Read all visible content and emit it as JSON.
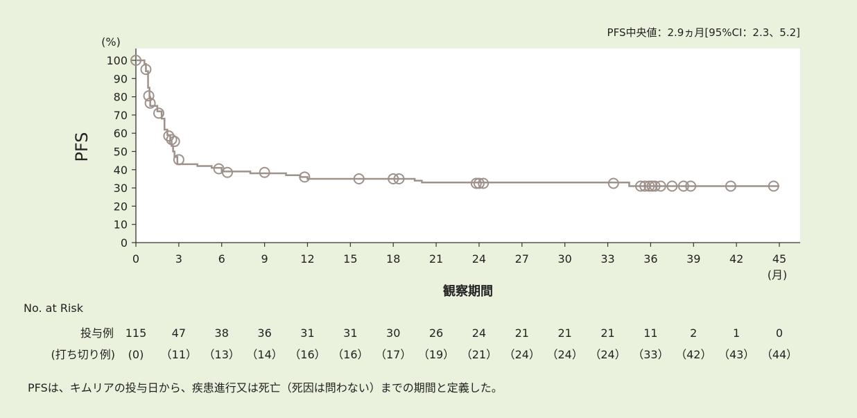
{
  "chart_data": {
    "type": "line",
    "annotation": "PFS中央値：2.9ヵ月[95%CI：2.3、5.2]",
    "ylabel": "PFS",
    "yunit": "(%)",
    "xlabel": "観察期間",
    "xunit": "(月)",
    "xlim": [
      0,
      45
    ],
    "ylim": [
      0,
      100
    ],
    "xticks": [
      0,
      3,
      6,
      9,
      12,
      15,
      18,
      21,
      24,
      27,
      30,
      33,
      36,
      39,
      42,
      45
    ],
    "yticks": [
      0,
      10,
      20,
      30,
      40,
      50,
      60,
      70,
      80,
      90,
      100
    ],
    "grid": false,
    "series": [
      {
        "color": "#9e918a",
        "step": [
          [
            0,
            100
          ],
          [
            0.6,
            98
          ],
          [
            0.7,
            94
          ],
          [
            0.85,
            85
          ],
          [
            0.95,
            80
          ],
          [
            1.0,
            75
          ],
          [
            1.5,
            72
          ],
          [
            1.8,
            68
          ],
          [
            2.0,
            62
          ],
          [
            2.2,
            59
          ],
          [
            2.4,
            56
          ],
          [
            2.5,
            53
          ],
          [
            2.6,
            50
          ],
          [
            2.7,
            47
          ],
          [
            2.9,
            43
          ],
          [
            4.3,
            42
          ],
          [
            5.3,
            41
          ],
          [
            6.0,
            39
          ],
          [
            8.0,
            38
          ],
          [
            10.5,
            37
          ],
          [
            11.5,
            36
          ],
          [
            12.0,
            35
          ],
          [
            19.5,
            34
          ],
          [
            20.0,
            33
          ],
          [
            34.5,
            31
          ],
          [
            45,
            31
          ]
        ],
        "censored": [
          [
            0,
            100
          ],
          [
            0.7,
            95
          ],
          [
            0.9,
            80.5
          ],
          [
            1.0,
            76.5
          ],
          [
            1.6,
            71
          ],
          [
            2.3,
            58.5
          ],
          [
            2.5,
            56.5
          ],
          [
            2.7,
            55.5
          ],
          [
            3.0,
            45.5
          ],
          [
            5.8,
            40.5
          ],
          [
            6.4,
            38.5
          ],
          [
            9.0,
            38.5
          ],
          [
            11.8,
            36
          ],
          [
            15.6,
            35
          ],
          [
            18.0,
            35
          ],
          [
            18.4,
            35
          ],
          [
            23.8,
            32.5
          ],
          [
            24.0,
            32.5
          ],
          [
            24.3,
            32.5
          ],
          [
            33.4,
            32.5
          ],
          [
            35.3,
            31
          ],
          [
            35.6,
            31
          ],
          [
            35.9,
            31
          ],
          [
            36.1,
            31
          ],
          [
            36.3,
            31
          ],
          [
            36.7,
            31
          ],
          [
            37.5,
            31
          ],
          [
            38.3,
            31
          ],
          [
            38.8,
            31
          ],
          [
            41.6,
            31
          ],
          [
            44.6,
            31
          ]
        ]
      }
    ]
  },
  "risk_table": {
    "title": "No. at Risk",
    "row1_label": "投与例",
    "row2_label": "(打ち切り例)",
    "values": [
      "115",
      "47",
      "38",
      "36",
      "31",
      "31",
      "30",
      "26",
      "24",
      "21",
      "21",
      "21",
      "11",
      "2",
      "1",
      "0"
    ],
    "censored": [
      "(0)",
      "（11）",
      "（13）",
      "（14）",
      "（16）",
      "（16）",
      "（17）",
      "（19）",
      "（21）",
      "（24）",
      "（24）",
      "（24）",
      "（33）",
      "（42）",
      "（43）",
      "（44）"
    ]
  },
  "footnote": "PFSは、キムリアの投与日から、疾患進行又は死亡（死因は問わない）までの期間と定義した。"
}
